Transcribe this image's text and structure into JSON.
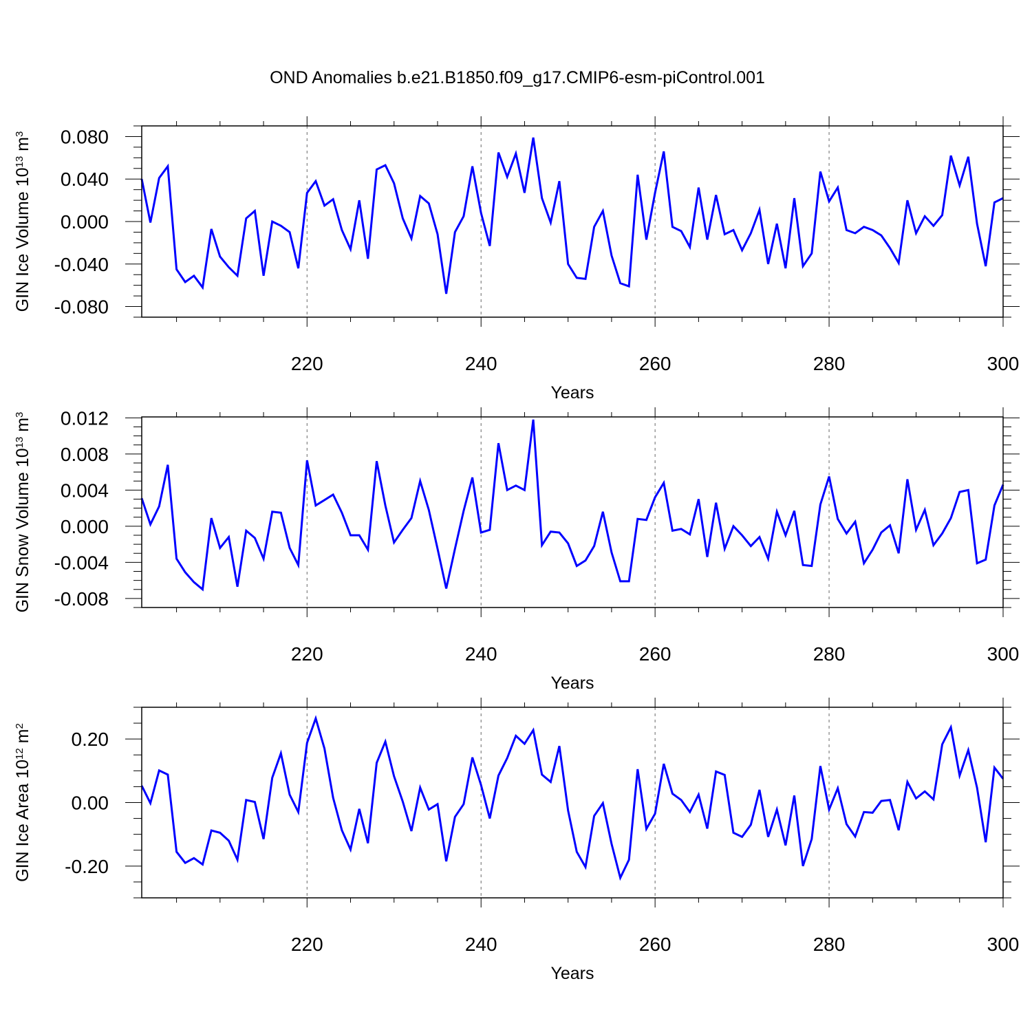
{
  "title": "OND Anomalies b.e21.B1850.f09_g17.CMIP6-esm-piControl.001",
  "chart_data": [
    {
      "type": "line",
      "title": "OND Anomalies b.e21.B1850.f09_g17.CMIP6-esm-piControl.001",
      "xlabel": "Years",
      "ylabel": "GIN Ice Volume 10",
      "ylabel_exp": "13",
      "ylabel_unit": " m",
      "ylabel_unit_exp": "3",
      "xlim": [
        201,
        300
      ],
      "ylim": [
        -0.09,
        0.09
      ],
      "xticks": [
        220,
        240,
        260,
        280,
        300
      ],
      "xticklabels": [
        "220",
        "240",
        "260",
        "280",
        "300"
      ],
      "yticks": [
        -0.08,
        -0.04,
        0.0,
        0.04,
        0.08
      ],
      "yticklabels": [
        "-0.080",
        "-0.040",
        "0.000",
        "0.040",
        "0.080"
      ],
      "vgrid": [
        220,
        240,
        260,
        280
      ],
      "line_color": "#0000ff",
      "x": [
        201,
        202,
        203,
        204,
        205,
        206,
        207,
        208,
        209,
        210,
        211,
        212,
        213,
        214,
        215,
        216,
        217,
        218,
        219,
        220,
        221,
        222,
        223,
        224,
        225,
        226,
        227,
        228,
        229,
        230,
        231,
        232,
        233,
        234,
        235,
        236,
        237,
        238,
        239,
        240,
        241,
        242,
        243,
        244,
        245,
        246,
        247,
        248,
        249,
        250,
        251,
        252,
        253,
        254,
        255,
        256,
        257,
        258,
        259,
        260,
        261,
        262,
        263,
        264,
        265,
        266,
        267,
        268,
        269,
        270,
        271,
        272,
        273,
        274,
        275,
        276,
        277,
        278,
        279,
        280,
        281,
        282,
        283,
        284,
        285,
        286,
        287,
        288,
        289,
        290,
        291,
        292,
        293,
        294,
        295,
        296,
        297,
        298,
        299,
        300
      ],
      "values": [
        0.04,
        -0.001,
        0.041,
        0.052,
        -0.045,
        -0.057,
        -0.051,
        -0.062,
        -0.007,
        -0.033,
        -0.043,
        -0.051,
        0.003,
        0.01,
        -0.051,
        0.0,
        -0.004,
        -0.01,
        -0.044,
        0.027,
        0.038,
        0.015,
        0.021,
        -0.008,
        -0.026,
        0.02,
        -0.035,
        0.049,
        0.053,
        0.036,
        0.003,
        -0.016,
        0.024,
        0.017,
        -0.012,
        -0.068,
        -0.01,
        0.005,
        0.052,
        0.008,
        -0.023,
        0.065,
        0.042,
        0.064,
        0.027,
        0.079,
        0.022,
        -0.001,
        0.038,
        -0.04,
        -0.053,
        -0.054,
        -0.005,
        0.01,
        -0.032,
        -0.058,
        -0.061,
        0.044,
        -0.017,
        0.027,
        0.066,
        -0.005,
        -0.009,
        -0.024,
        0.032,
        -0.017,
        0.025,
        -0.012,
        -0.008,
        -0.027,
        -0.011,
        0.011,
        -0.04,
        -0.002,
        -0.044,
        0.022,
        -0.042,
        -0.03,
        0.047,
        0.019,
        0.032,
        -0.008,
        -0.011,
        -0.005,
        -0.008,
        -0.013,
        -0.025,
        -0.039,
        0.02,
        -0.011,
        0.005,
        -0.004,
        0.006,
        0.062,
        0.034,
        0.061,
        -0.002,
        -0.042,
        0.018,
        0.022
      ]
    },
    {
      "type": "line",
      "xlabel": "Years",
      "ylabel": "GIN Snow Volume 10",
      "ylabel_exp": "13",
      "ylabel_unit": " m",
      "ylabel_unit_exp": "3",
      "xlim": [
        201,
        300
      ],
      "ylim": [
        -0.009,
        0.0121
      ],
      "xticks": [
        220,
        240,
        260,
        280,
        300
      ],
      "xticklabels": [
        "220",
        "240",
        "260",
        "280",
        "300"
      ],
      "yticks": [
        -0.008,
        -0.004,
        0.0,
        0.004,
        0.008,
        0.012
      ],
      "yticklabels": [
        "-0.008",
        "-0.004",
        "0.000",
        "0.004",
        "0.008",
        "0.012"
      ],
      "vgrid": [
        220,
        240,
        260,
        280
      ],
      "line_color": "#0000ff",
      "x": [
        201,
        202,
        203,
        204,
        205,
        206,
        207,
        208,
        209,
        210,
        211,
        212,
        213,
        214,
        215,
        216,
        217,
        218,
        219,
        220,
        221,
        222,
        223,
        224,
        225,
        226,
        227,
        228,
        229,
        230,
        231,
        232,
        233,
        234,
        235,
        236,
        237,
        238,
        239,
        240,
        241,
        242,
        243,
        244,
        245,
        246,
        247,
        248,
        249,
        250,
        251,
        252,
        253,
        254,
        255,
        256,
        257,
        258,
        259,
        260,
        261,
        262,
        263,
        264,
        265,
        266,
        267,
        268,
        269,
        270,
        271,
        272,
        273,
        274,
        275,
        276,
        277,
        278,
        279,
        280,
        281,
        282,
        283,
        284,
        285,
        286,
        287,
        288,
        289,
        290,
        291,
        292,
        293,
        294,
        295,
        296,
        297,
        298,
        299,
        300
      ],
      "values": [
        0.0031,
        0.0002,
        0.0022,
        0.0068,
        -0.0036,
        -0.0051,
        -0.0062,
        -0.007,
        0.0009,
        -0.0024,
        -0.0012,
        -0.0067,
        -0.0005,
        -0.0013,
        -0.0036,
        0.0016,
        0.0015,
        -0.0024,
        -0.0043,
        0.0073,
        0.0023,
        0.0029,
        0.0035,
        0.0015,
        -0.001,
        -0.001,
        -0.0026,
        0.0072,
        0.0023,
        -0.0018,
        -0.0004,
        0.0009,
        0.005,
        0.0018,
        -0.0025,
        -0.0069,
        -0.0025,
        0.0017,
        0.0054,
        -0.0007,
        -0.0004,
        0.0092,
        0.004,
        0.0045,
        0.004,
        0.0118,
        -0.0021,
        -0.0006,
        -0.0007,
        -0.0019,
        -0.0044,
        -0.0038,
        -0.0022,
        0.0016,
        -0.0029,
        -0.0061,
        -0.0061,
        0.0008,
        0.0007,
        0.0032,
        0.0048,
        -0.0005,
        -0.0003,
        -0.0009,
        0.003,
        -0.0034,
        0.0026,
        -0.0025,
        0.0,
        -0.001,
        -0.0022,
        -0.0012,
        -0.0036,
        0.0016,
        -0.001,
        0.0017,
        -0.0043,
        -0.0044,
        0.0024,
        0.0055,
        0.0008,
        -0.0008,
        0.0005,
        -0.0041,
        -0.0026,
        -0.0007,
        0.0001,
        -0.003,
        0.0052,
        -0.0004,
        0.0018,
        -0.0021,
        -0.0008,
        0.0009,
        0.0038,
        0.004,
        -0.0041,
        -0.0037,
        0.0023,
        0.0046
      ]
    },
    {
      "type": "line",
      "xlabel": "Years",
      "ylabel": "GIN Ice Area 10",
      "ylabel_exp": "12",
      "ylabel_unit": " m",
      "ylabel_unit_exp": "2",
      "xlim": [
        201,
        300
      ],
      "ylim": [
        -0.3,
        0.3
      ],
      "xticks": [
        220,
        240,
        260,
        280,
        300
      ],
      "xticklabels": [
        "220",
        "240",
        "260",
        "280",
        "300"
      ],
      "yticks": [
        -0.2,
        0.0,
        0.2
      ],
      "yticklabels": [
        "-0.20",
        "0.00",
        "0.20"
      ],
      "vgrid": [
        220,
        240,
        260,
        280
      ],
      "line_color": "#0000ff",
      "x": [
        201,
        202,
        203,
        204,
        205,
        206,
        207,
        208,
        209,
        210,
        211,
        212,
        213,
        214,
        215,
        216,
        217,
        218,
        219,
        220,
        221,
        222,
        223,
        224,
        225,
        226,
        227,
        228,
        229,
        230,
        231,
        232,
        233,
        234,
        235,
        236,
        237,
        238,
        239,
        240,
        241,
        242,
        243,
        244,
        245,
        246,
        247,
        248,
        249,
        250,
        251,
        252,
        253,
        254,
        255,
        256,
        257,
        258,
        259,
        260,
        261,
        262,
        263,
        264,
        265,
        266,
        267,
        268,
        269,
        270,
        271,
        272,
        273,
        274,
        275,
        276,
        277,
        278,
        279,
        280,
        281,
        282,
        283,
        284,
        285,
        286,
        287,
        288,
        289,
        290,
        291,
        292,
        293,
        294,
        295,
        296,
        297,
        298,
        299,
        300
      ],
      "values": [
        0.053,
        -0.002,
        0.101,
        0.088,
        -0.155,
        -0.19,
        -0.175,
        -0.195,
        -0.088,
        -0.095,
        -0.12,
        -0.18,
        0.008,
        0.002,
        -0.115,
        0.078,
        0.155,
        0.025,
        -0.03,
        0.188,
        0.265,
        0.17,
        0.015,
        -0.087,
        -0.148,
        -0.02,
        -0.128,
        0.125,
        0.192,
        0.083,
        0.003,
        -0.09,
        0.047,
        -0.022,
        -0.005,
        -0.185,
        -0.045,
        -0.005,
        0.142,
        0.055,
        -0.05,
        0.085,
        0.14,
        0.21,
        0.185,
        0.228,
        0.088,
        0.065,
        0.178,
        -0.025,
        -0.155,
        -0.203,
        -0.042,
        -0.002,
        -0.13,
        -0.237,
        -0.18,
        0.105,
        -0.083,
        -0.035,
        0.122,
        0.028,
        0.008,
        -0.03,
        0.025,
        -0.082,
        0.098,
        0.087,
        -0.095,
        -0.108,
        -0.07,
        0.04,
        -0.108,
        -0.022,
        -0.135,
        0.022,
        -0.2,
        -0.115,
        0.115,
        -0.022,
        0.045,
        -0.068,
        -0.107,
        -0.03,
        -0.032,
        0.005,
        0.008,
        -0.087,
        0.065,
        0.013,
        0.035,
        0.01,
        0.183,
        0.237,
        0.085,
        0.165,
        0.047,
        -0.125,
        0.11,
        0.075
      ]
    }
  ]
}
